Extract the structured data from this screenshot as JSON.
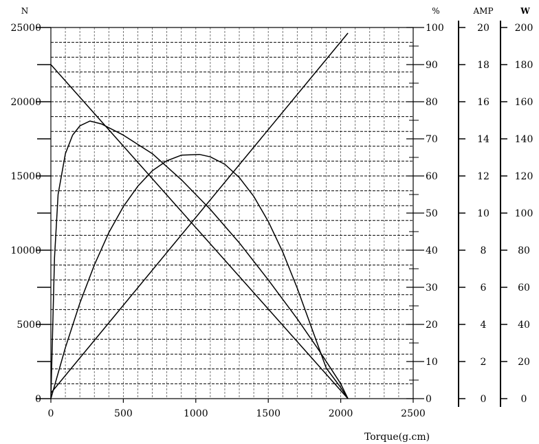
{
  "chart_data": {
    "type": "line",
    "xlabel": "Torque(g.cm)",
    "x_ticks": [
      0,
      500,
      1000,
      1500,
      2000,
      2500
    ],
    "xlim": [
      0,
      2500
    ],
    "axes": {
      "speed": {
        "unit": "N",
        "range": [
          0,
          25000
        ],
        "ticks": [
          0,
          5000,
          10000,
          15000,
          20000,
          25000
        ]
      },
      "efficiency": {
        "unit": "%",
        "range": [
          0,
          100
        ],
        "ticks": [
          0,
          10,
          20,
          30,
          40,
          50,
          60,
          70,
          80,
          90,
          100
        ]
      },
      "current": {
        "unit": "AMP",
        "range": [
          0,
          20
        ],
        "ticks": [
          0,
          2,
          4,
          6,
          8,
          10,
          12,
          14,
          16,
          18,
          20
        ]
      },
      "power": {
        "unit": "W",
        "range": [
          0,
          200
        ],
        "ticks": [
          0,
          20,
          40,
          60,
          80,
          100,
          120,
          140,
          160,
          180,
          200
        ]
      }
    },
    "grid": true,
    "series": [
      {
        "axis": "speed",
        "points": [
          [
            0,
            22500
          ],
          [
            2050,
            0
          ]
        ]
      },
      {
        "axis": "efficiency",
        "points": [
          [
            0,
            0
          ],
          [
            25,
            38
          ],
          [
            50,
            55
          ],
          [
            100,
            66
          ],
          [
            150,
            71
          ],
          [
            200,
            73.5
          ],
          [
            270,
            74.8
          ],
          [
            350,
            74
          ],
          [
            500,
            71
          ],
          [
            700,
            66
          ],
          [
            900,
            59
          ],
          [
            1100,
            51
          ],
          [
            1300,
            42
          ],
          [
            1500,
            32
          ],
          [
            1700,
            21.5
          ],
          [
            1850,
            13
          ],
          [
            1950,
            7
          ],
          [
            2000,
            4
          ],
          [
            2050,
            0
          ]
        ]
      },
      {
        "axis": "current",
        "points": [
          [
            0,
            0.3
          ],
          [
            2050,
            19.7
          ]
        ]
      },
      {
        "axis": "power",
        "points": [
          [
            0,
            0
          ],
          [
            100,
            27.5
          ],
          [
            200,
            51.5
          ],
          [
            300,
            72
          ],
          [
            400,
            89.5
          ],
          [
            500,
            103.5
          ],
          [
            600,
            114.5
          ],
          [
            700,
            122.8
          ],
          [
            800,
            128.2
          ],
          [
            900,
            131.2
          ],
          [
            1025,
            131.6
          ],
          [
            1100,
            130.3
          ],
          [
            1200,
            126.3
          ],
          [
            1300,
            119.2
          ],
          [
            1400,
            109
          ],
          [
            1500,
            95.5
          ],
          [
            1600,
            79
          ],
          [
            1700,
            59.5
          ],
          [
            1800,
            38
          ],
          [
            1900,
            16.5
          ],
          [
            2000,
            6
          ],
          [
            2050,
            0
          ]
        ]
      }
    ]
  }
}
